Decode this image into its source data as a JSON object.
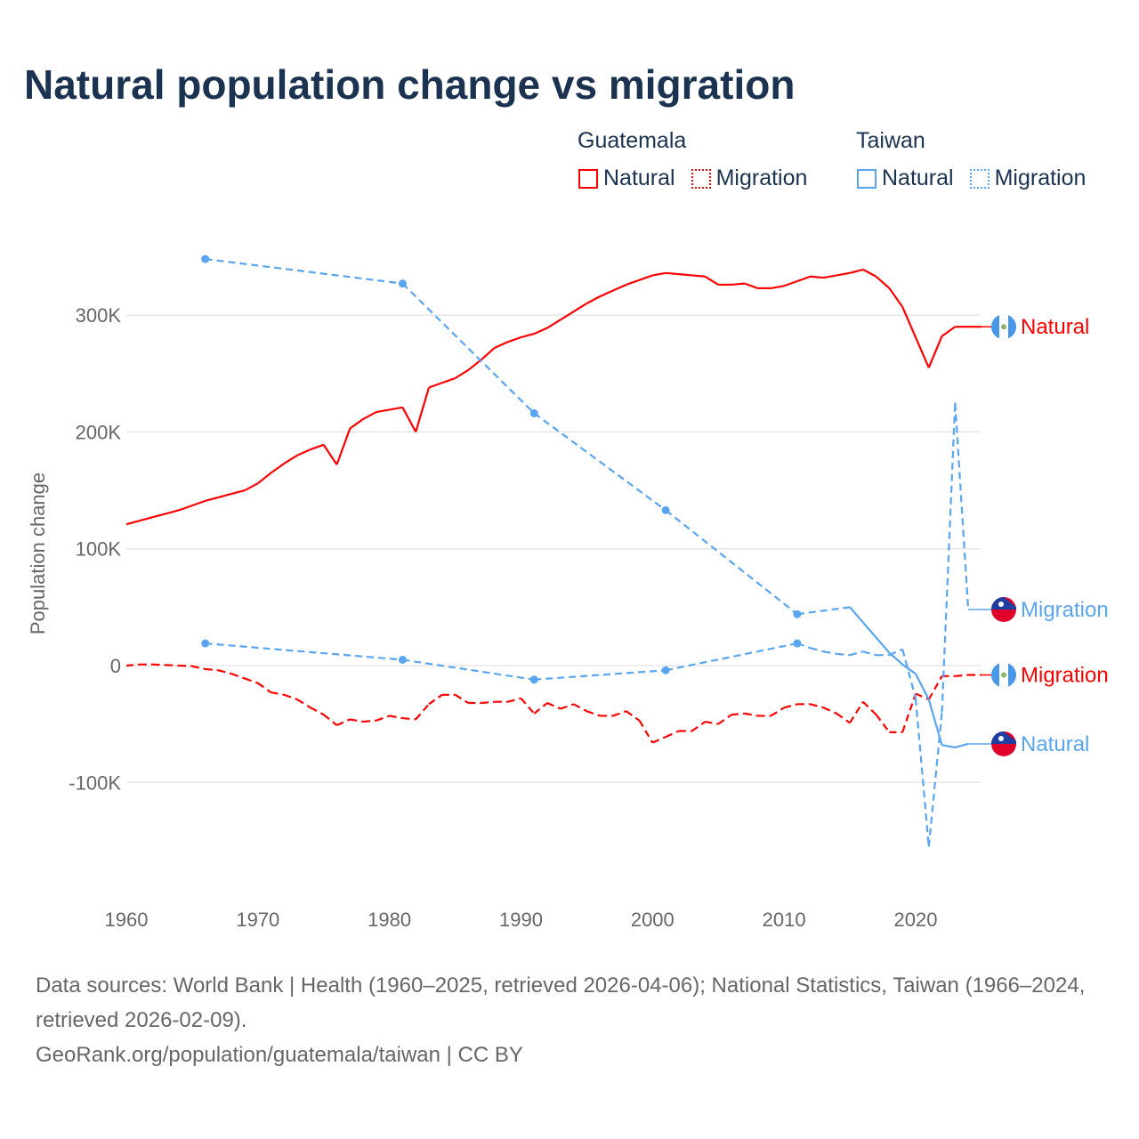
{
  "title": "Natural population change vs migration",
  "legend": {
    "groups": [
      {
        "name": "Guatemala",
        "color": "#ff0000",
        "items": [
          "Natural",
          "Migration"
        ]
      },
      {
        "name": "Taiwan",
        "color": "#5aa5f0",
        "items": [
          "Natural",
          "Migration"
        ]
      }
    ]
  },
  "footer": {
    "line1": "Data sources: World Bank | Health (1960–2025, retrieved 2026-04-06); National Statistics, Taiwan (1966–2024, retrieved 2026-02-09).",
    "line2": "GeoRank.org/population/guatemala/taiwan | CC BY"
  },
  "chart_data": {
    "type": "line",
    "title": "Natural population change vs migration",
    "xlabel": "",
    "ylabel": "Population change",
    "xlim": [
      1960,
      2025
    ],
    "ylim": [
      -160000,
      360000
    ],
    "x_ticks": [
      1960,
      1970,
      1980,
      1990,
      2000,
      2010,
      2020
    ],
    "y_ticks": [
      {
        "v": -100000,
        "label": "-100K"
      },
      {
        "v": 0,
        "label": "0"
      },
      {
        "v": 100000,
        "label": "100K"
      },
      {
        "v": 200000,
        "label": "200K"
      },
      {
        "v": 300000,
        "label": "300K"
      }
    ],
    "grid": true,
    "legend_placement": "top-right",
    "series": [
      {
        "name": "Guatemala Natural",
        "label": "Natural",
        "country": "guatemala",
        "color": "#ff0000",
        "style": "solid",
        "x": [
          1960,
          1961,
          1962,
          1963,
          1964,
          1965,
          1966,
          1967,
          1968,
          1969,
          1970,
          1971,
          1972,
          1973,
          1974,
          1975,
          1976,
          1977,
          1978,
          1979,
          1980,
          1981,
          1982,
          1983,
          1984,
          1985,
          1986,
          1987,
          1988,
          1989,
          1990,
          1991,
          1992,
          1993,
          1994,
          1995,
          1996,
          1997,
          1998,
          1999,
          2000,
          2001,
          2002,
          2003,
          2004,
          2005,
          2006,
          2007,
          2008,
          2009,
          2010,
          2011,
          2012,
          2013,
          2014,
          2015,
          2016,
          2017,
          2018,
          2019,
          2020,
          2021,
          2022,
          2023,
          2024,
          2025
        ],
        "y": [
          121000,
          124000,
          127000,
          130000,
          133000,
          137000,
          141000,
          144000,
          147000,
          150000,
          156000,
          165000,
          173000,
          180000,
          185000,
          189000,
          172000,
          203000,
          211000,
          217000,
          219000,
          221000,
          200000,
          238000,
          242000,
          246000,
          253000,
          262000,
          272000,
          277000,
          281000,
          284000,
          289000,
          296000,
          303000,
          310000,
          316000,
          321000,
          326000,
          330000,
          334000,
          336000,
          335000,
          334000,
          333000,
          326000,
          326000,
          327000,
          323000,
          323000,
          325000,
          329000,
          333000,
          332000,
          334000,
          336000,
          339000,
          333000,
          323000,
          307000,
          281000,
          255000,
          282000,
          290000,
          290000,
          290000
        ]
      },
      {
        "name": "Guatemala Migration",
        "label": "Migration",
        "country": "guatemala",
        "color": "#ff0000",
        "style": "dashed",
        "x": [
          1960,
          1961,
          1962,
          1963,
          1964,
          1965,
          1966,
          1967,
          1968,
          1969,
          1970,
          1971,
          1972,
          1973,
          1974,
          1975,
          1976,
          1977,
          1978,
          1979,
          1980,
          1981,
          1982,
          1983,
          1984,
          1985,
          1986,
          1987,
          1988,
          1989,
          1990,
          1991,
          1992,
          1993,
          1994,
          1995,
          1996,
          1997,
          1998,
          1999,
          2000,
          2001,
          2002,
          2003,
          2004,
          2005,
          2006,
          2007,
          2008,
          2009,
          2010,
          2011,
          2012,
          2013,
          2014,
          2015,
          2016,
          2017,
          2018,
          2019,
          2020,
          2021,
          2022,
          2023,
          2024,
          2025
        ],
        "y": [
          0,
          1000,
          1000,
          500,
          0,
          -500,
          -3000,
          -4000,
          -7000,
          -11000,
          -15000,
          -23000,
          -25000,
          -29000,
          -36000,
          -42000,
          -51000,
          -46000,
          -48000,
          -47000,
          -43000,
          -45000,
          -46000,
          -33000,
          -25000,
          -25000,
          -32000,
          -32000,
          -31000,
          -31000,
          -28000,
          -41000,
          -32000,
          -37000,
          -33000,
          -39000,
          -43000,
          -43000,
          -39000,
          -47000,
          -66000,
          -61000,
          -56000,
          -56000,
          -48000,
          -50000,
          -42000,
          -41000,
          -43000,
          -43000,
          -36000,
          -33000,
          -33000,
          -36000,
          -41000,
          -49000,
          -31000,
          -42000,
          -57000,
          -57000,
          -24000,
          -29000,
          -9000,
          -9000,
          -8000,
          -8000
        ]
      },
      {
        "name": "Taiwan Natural",
        "label": "Natural",
        "country": "taiwan",
        "color": "#5aa5f0",
        "style": "solid",
        "x": [
          1966,
          1981,
          1991,
          2001,
          2011,
          2015,
          2016,
          2017,
          2018,
          2019,
          2020,
          2021,
          2022,
          2023,
          2024
        ],
        "y": [
          348000,
          327000,
          216000,
          133000,
          44000,
          50000,
          37000,
          24000,
          11000,
          1000,
          -7000,
          -29000,
          -68000,
          -70000,
          -67000
        ],
        "markers": [
          1966,
          1981,
          1991,
          2001,
          2011
        ]
      },
      {
        "name": "Taiwan Migration",
        "label": "Migration",
        "country": "taiwan",
        "color": "#5aa5f0",
        "style": "dashed",
        "x": [
          1966,
          1981,
          1991,
          2001,
          2011,
          2012,
          2013,
          2014,
          2015,
          2016,
          2017,
          2018,
          2019,
          2020,
          2021,
          2022,
          2023,
          2024
        ],
        "y": [
          19000,
          5000,
          -12000,
          -4000,
          19000,
          15000,
          12000,
          10000,
          9000,
          12000,
          9000,
          9000,
          14000,
          -28000,
          -155000,
          -40000,
          225000,
          48000
        ],
        "markers": [
          1966,
          1981,
          1991,
          2001,
          2011
        ]
      }
    ],
    "end_labels": [
      {
        "series": 0,
        "text": "Natural",
        "value": 290000
      },
      {
        "series": 3,
        "text": "Migration",
        "value": 48000
      },
      {
        "series": 1,
        "text": "Migration",
        "value": -8000
      },
      {
        "series": 2,
        "text": "Natural",
        "value": -67000
      }
    ]
  }
}
